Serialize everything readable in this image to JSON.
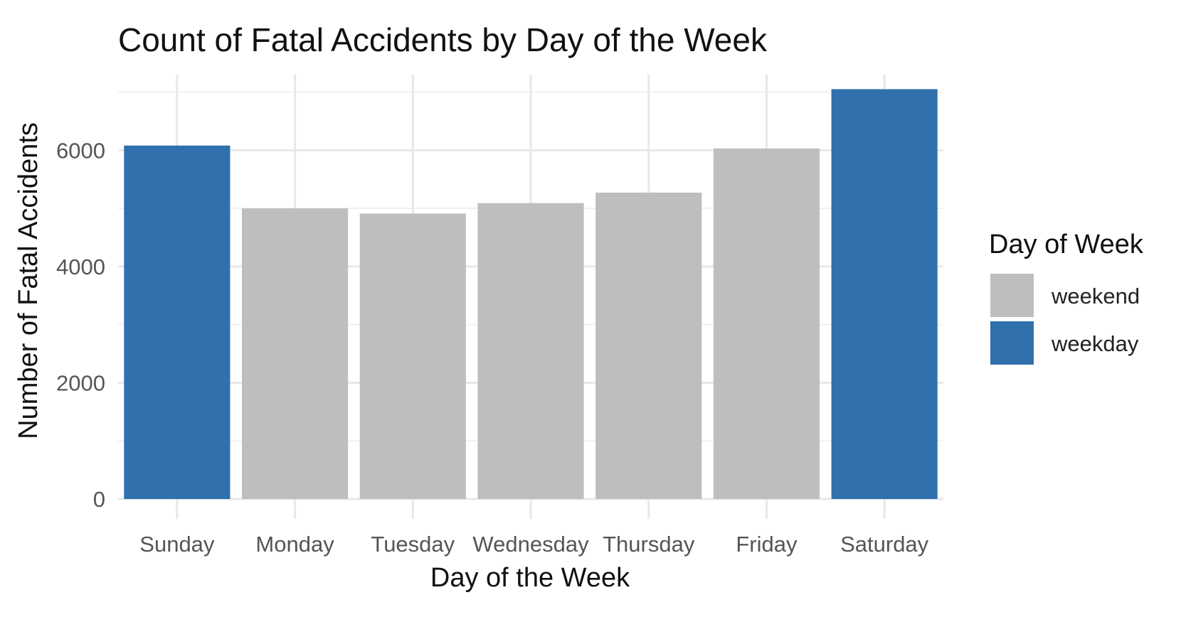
{
  "chart_data": {
    "type": "bar",
    "title": "Count of Fatal Accidents by Day of the Week",
    "xlabel": "Day of the Week",
    "ylabel": "Number of Fatal Accidents",
    "categories": [
      "Sunday",
      "Monday",
      "Tuesday",
      "Wednesday",
      "Thursday",
      "Friday",
      "Saturday"
    ],
    "values": [
      6080,
      5000,
      4910,
      5090,
      5270,
      6030,
      7050
    ],
    "groups": [
      "weekday",
      "weekend",
      "weekend",
      "weekend",
      "weekend",
      "weekend",
      "weekday"
    ],
    "ylim": [
      0,
      7300
    ],
    "yticks": [
      0,
      2000,
      4000,
      6000
    ],
    "grid": true,
    "legend": {
      "title": "Day of Week",
      "position": "right",
      "entries": [
        {
          "label": "weekend",
          "color": "#bebebe"
        },
        {
          "label": "weekday",
          "color": "#3070ad"
        }
      ]
    }
  }
}
